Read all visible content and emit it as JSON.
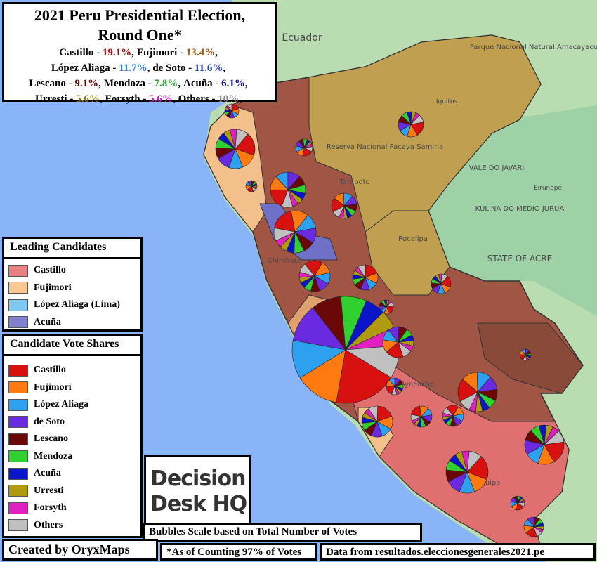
{
  "title": [
    "2021 Peru Presidential Election,",
    "Round One*"
  ],
  "name_separator": " - ",
  "list_separator": ",",
  "results": [
    {
      "name": "Castillo",
      "value": 19.1,
      "label": "19.1%",
      "color": "#a01010"
    },
    {
      "name": "Fujimori",
      "value": 13.4,
      "label": "13.4%",
      "color": "#9a5a10"
    },
    {
      "name": "López Aliaga",
      "value": 11.7,
      "label": "11.7%",
      "color": "#2f7fd8"
    },
    {
      "name": "de Soto",
      "value": 11.6,
      "label": "11.6%",
      "color": "#2040b0"
    },
    {
      "name": "Lescano",
      "value": 9.1,
      "label": "9.1%",
      "color": "#6a0a0a"
    },
    {
      "name": "Mendoza",
      "value": 7.8,
      "label": "7.8%",
      "color": "#2a9a2a"
    },
    {
      "name": "Acuña",
      "value": 6.1,
      "label": "6.1%",
      "color": "#1010a0"
    },
    {
      "name": "Urresti",
      "value": 5.6,
      "label": "5.6%",
      "color": "#8a7a10"
    },
    {
      "name": "Forsyth",
      "value": 5.6,
      "label": "5.6%",
      "color": "#c020c0"
    },
    {
      "name": "Others",
      "value": 10,
      "label": "10%",
      "color": "#808080"
    }
  ],
  "leading_legend": {
    "title": "Leading Candidates",
    "items": [
      {
        "label": "Castillo",
        "color": "#e88080"
      },
      {
        "label": "Fujimori",
        "color": "#f8c890"
      },
      {
        "label": "López Aliaga (Lima)",
        "color": "#80c8f0"
      },
      {
        "label": "Acuña",
        "color": "#8080d0"
      }
    ]
  },
  "share_legend": {
    "title": "Candidate Vote Shares",
    "items": [
      {
        "label": "Castillo",
        "color": "#d81010"
      },
      {
        "label": "Fujimori",
        "color": "#ff7a10"
      },
      {
        "label": "López Aliaga",
        "color": "#2ea0f0"
      },
      {
        "label": "de Soto",
        "color": "#6a2ae0"
      },
      {
        "label": "Lescano",
        "color": "#6a0808"
      },
      {
        "label": "Mendoza",
        "color": "#30d030"
      },
      {
        "label": "Acuña",
        "color": "#0a14c8"
      },
      {
        "label": "Urresti",
        "color": "#b09a10"
      },
      {
        "label": "Forsyth",
        "color": "#e020c0"
      },
      {
        "label": "Others",
        "color": "#c0c0c0"
      }
    ]
  },
  "logo": [
    "Decision",
    "Desk HQ"
  ],
  "bubble_note": "Bubbles Scale based on Total Number of Votes",
  "credit": "Created by OryxMaps",
  "counting_note": "*As of Counting 97% of Votes",
  "source": "Data from resultados.eleccionesgenerales2021.pe",
  "map_labels": [
    "Ecuador",
    "Iquitos",
    "Reserva Nacional Pacaya Samiria",
    "VALE DO JAVARI",
    "KULINA DO MEDIO JURUA",
    "STATE OF ACRE",
    "Tarapoto",
    "Pucallpa",
    "Chimbote",
    "Ayacucho",
    "Arequipa",
    "Eirunepé",
    "Parque Nacional Natural Amacayacu"
  ]
}
